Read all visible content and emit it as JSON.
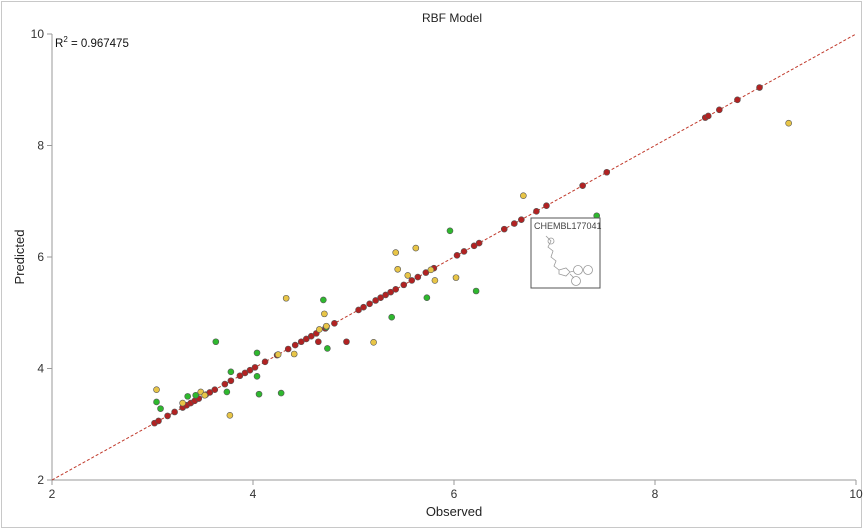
{
  "chart_data": {
    "type": "scatter",
    "title": "RBF Model",
    "xlabel": "Observed",
    "ylabel": "Predicted",
    "xlim": [
      2,
      10
    ],
    "ylim": [
      2,
      10
    ],
    "x_ticks": [
      2,
      4,
      6,
      8,
      10
    ],
    "y_ticks": [
      2,
      4,
      6,
      8,
      10
    ],
    "grid": false,
    "annotation": {
      "label": "R",
      "superscript": "2",
      "value": " = 0.967475"
    },
    "reference_line": {
      "from": [
        2,
        2
      ],
      "to": [
        10,
        10
      ],
      "color": "#c0392b",
      "style": "dashed"
    },
    "series": [
      {
        "color": "#b22222",
        "points": [
          [
            3.02,
            3.02
          ],
          [
            3.06,
            3.06
          ],
          [
            3.15,
            3.15
          ],
          [
            3.22,
            3.22
          ],
          [
            3.3,
            3.3
          ],
          [
            3.34,
            3.34
          ],
          [
            3.38,
            3.38
          ],
          [
            3.42,
            3.42
          ],
          [
            3.46,
            3.46
          ],
          [
            3.53,
            3.53
          ],
          [
            3.57,
            3.57
          ],
          [
            3.62,
            3.62
          ],
          [
            3.72,
            3.72
          ],
          [
            3.78,
            3.78
          ],
          [
            3.87,
            3.87
          ],
          [
            3.92,
            3.92
          ],
          [
            3.97,
            3.97
          ],
          [
            4.02,
            4.02
          ],
          [
            4.12,
            4.12
          ],
          [
            4.24,
            4.24
          ],
          [
            4.35,
            4.35
          ],
          [
            4.42,
            4.42
          ],
          [
            4.48,
            4.48
          ],
          [
            4.53,
            4.53
          ],
          [
            4.58,
            4.58
          ],
          [
            4.63,
            4.63
          ],
          [
            4.72,
            4.72
          ],
          [
            4.81,
            4.81
          ],
          [
            4.65,
            4.48
          ],
          [
            4.93,
            4.48
          ],
          [
            5.05,
            5.05
          ],
          [
            5.1,
            5.1
          ],
          [
            5.16,
            5.16
          ],
          [
            5.22,
            5.22
          ],
          [
            5.27,
            5.27
          ],
          [
            5.32,
            5.32
          ],
          [
            5.37,
            5.37
          ],
          [
            5.42,
            5.42
          ],
          [
            5.5,
            5.5
          ],
          [
            5.58,
            5.58
          ],
          [
            5.64,
            5.64
          ],
          [
            5.72,
            5.72
          ],
          [
            5.8,
            5.8
          ],
          [
            6.03,
            6.03
          ],
          [
            6.1,
            6.1
          ],
          [
            6.2,
            6.2
          ],
          [
            6.25,
            6.25
          ],
          [
            6.5,
            6.5
          ],
          [
            6.6,
            6.6
          ],
          [
            6.67,
            6.67
          ],
          [
            6.82,
            6.82
          ],
          [
            6.92,
            6.92
          ],
          [
            7.28,
            7.28
          ],
          [
            7.52,
            7.52
          ],
          [
            8.5,
            8.5
          ],
          [
            8.53,
            8.53
          ],
          [
            8.64,
            8.64
          ],
          [
            8.82,
            8.82
          ],
          [
            9.04,
            9.04
          ]
        ]
      },
      {
        "color": "#2eb82e",
        "points": [
          [
            3.04,
            3.4
          ],
          [
            3.08,
            3.28
          ],
          [
            3.35,
            3.5
          ],
          [
            3.43,
            3.52
          ],
          [
            3.63,
            4.48
          ],
          [
            3.74,
            3.58
          ],
          [
            3.78,
            3.94
          ],
          [
            4.04,
            3.86
          ],
          [
            4.04,
            4.28
          ],
          [
            4.06,
            3.54
          ],
          [
            4.28,
            3.56
          ],
          [
            4.7,
            5.23
          ],
          [
            4.73,
            4.74
          ],
          [
            4.74,
            4.36
          ],
          [
            5.38,
            4.92
          ],
          [
            5.73,
            5.27
          ],
          [
            5.96,
            6.47
          ],
          [
            6.22,
            5.39
          ],
          [
            7.42,
            6.74
          ]
        ]
      },
      {
        "color": "#e8c547",
        "points": [
          [
            3.04,
            3.62
          ],
          [
            3.3,
            3.38
          ],
          [
            3.48,
            3.58
          ],
          [
            3.52,
            3.52
          ],
          [
            3.77,
            3.16
          ],
          [
            4.25,
            4.25
          ],
          [
            4.33,
            5.26
          ],
          [
            4.41,
            4.26
          ],
          [
            4.66,
            4.7
          ],
          [
            4.71,
            4.98
          ],
          [
            4.73,
            4.76
          ],
          [
            5.2,
            4.47
          ],
          [
            5.42,
            6.08
          ],
          [
            5.44,
            5.78
          ],
          [
            5.54,
            5.67
          ],
          [
            5.62,
            6.16
          ],
          [
            5.77,
            5.77
          ],
          [
            5.81,
            5.58
          ],
          [
            6.02,
            5.63
          ],
          [
            6.69,
            7.1
          ],
          [
            9.33,
            8.4
          ]
        ]
      }
    ],
    "tooltip": {
      "id": "CHEMBL177041",
      "anchor": [
        7.42,
        6.74
      ]
    }
  }
}
